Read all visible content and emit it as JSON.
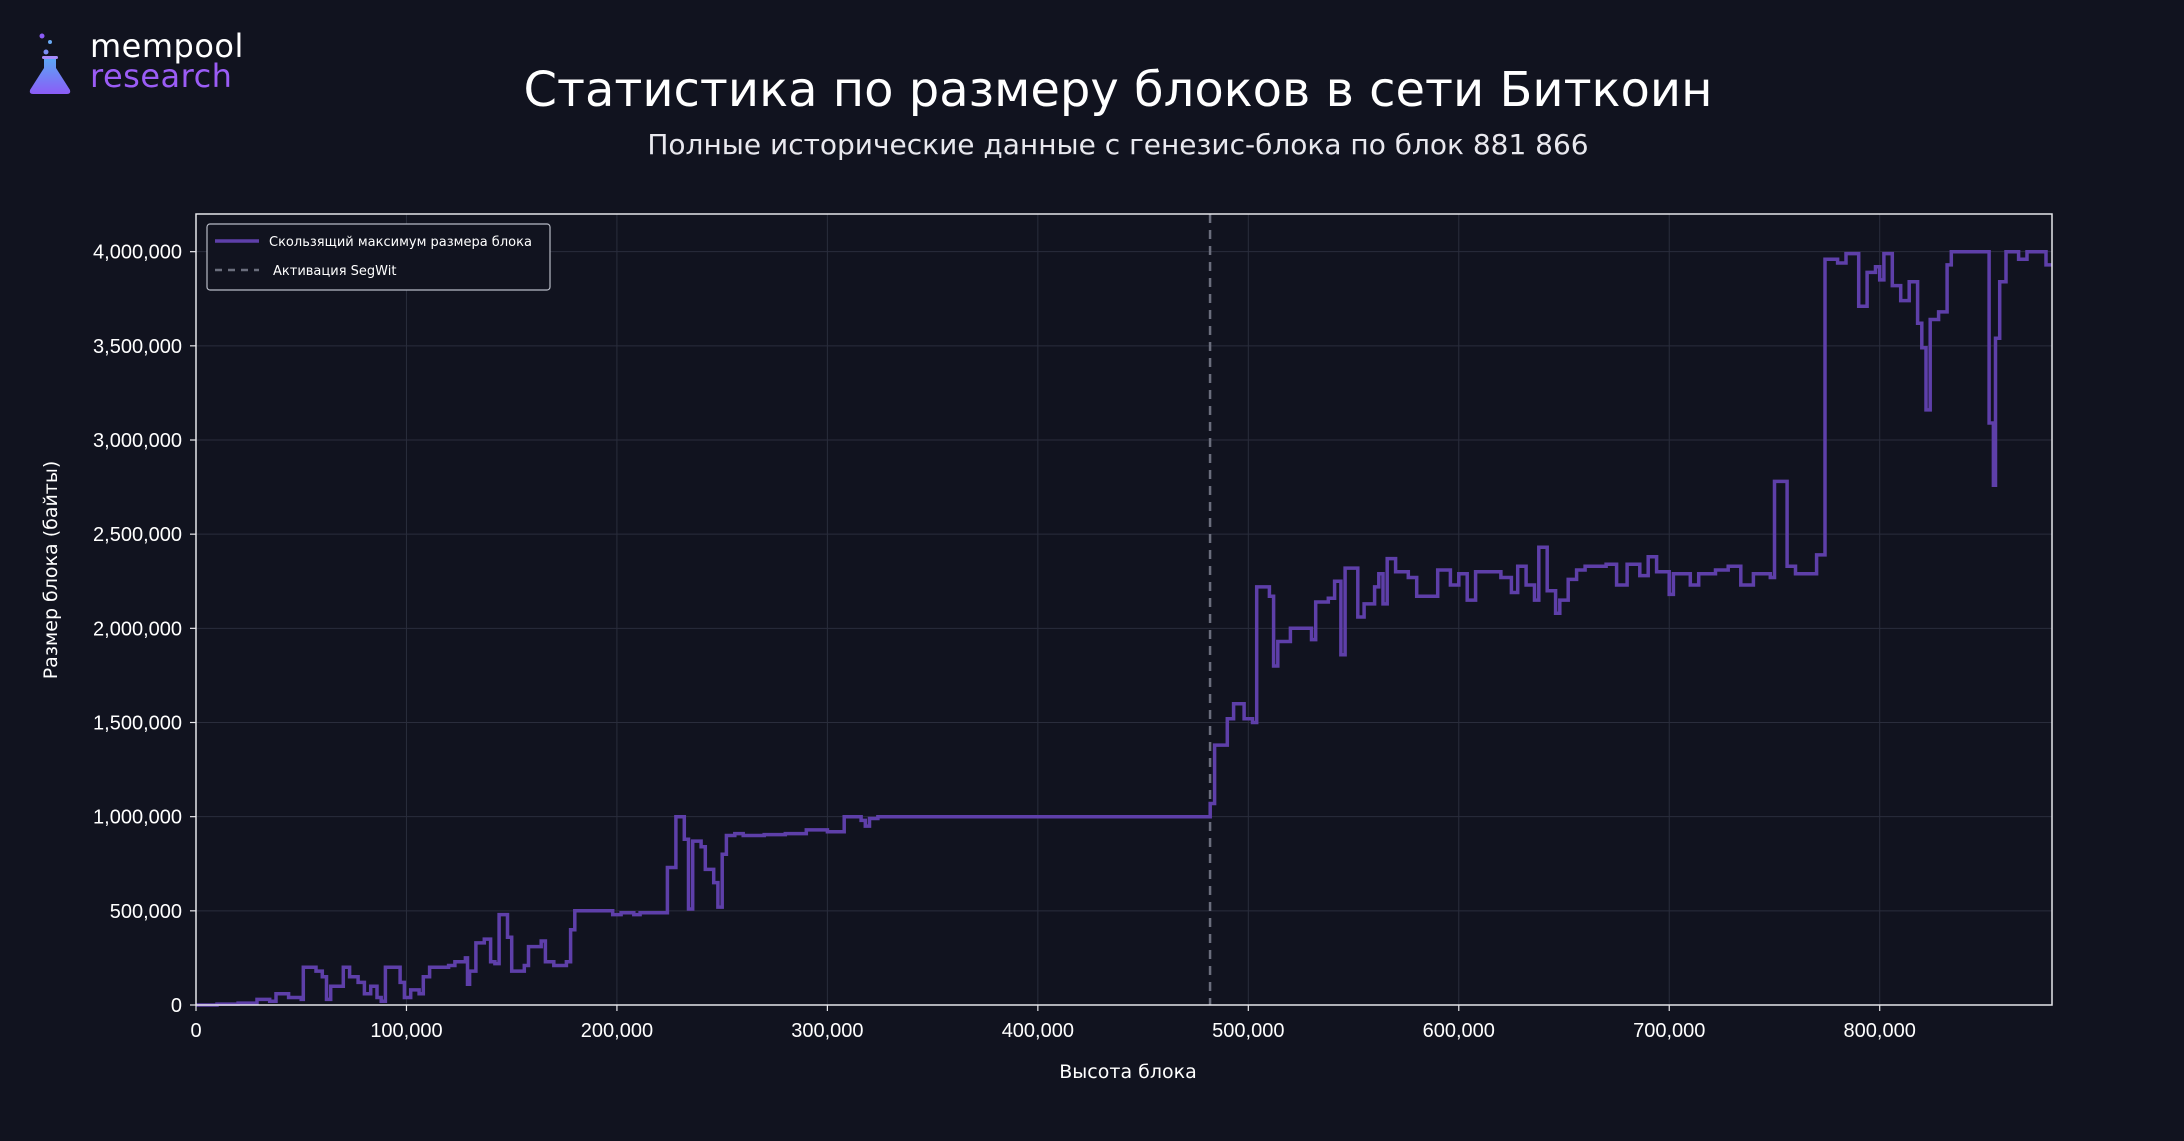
{
  "brand": {
    "line1": "mempool",
    "line2": "research",
    "icon": "flask-icon"
  },
  "colors": {
    "background": "#11131f",
    "line": "#5e3fa9",
    "segwit": "#6b6e7d",
    "grid": "#2a2d3c",
    "brand_accent": "#9b5cf6"
  },
  "chart_data": {
    "type": "line",
    "title": "Статистика по размеру блоков в сети Биткоин",
    "subtitle": "Полные исторические данные с генезис-блока по блок 881 866",
    "xlabel": "Высота блока",
    "ylabel": "Размер блока (байты)",
    "xlim": [
      0,
      881866
    ],
    "ylim": [
      0,
      4200000
    ],
    "xticks": [
      0,
      100000,
      200000,
      300000,
      400000,
      500000,
      600000,
      700000,
      800000
    ],
    "xtick_labels": [
      "0",
      "100,000",
      "200,000",
      "300,000",
      "400,000",
      "500,000",
      "600,000",
      "700,000",
      "800,000"
    ],
    "yticks": [
      0,
      500000,
      1000000,
      1500000,
      2000000,
      2500000,
      3000000,
      3500000,
      4000000
    ],
    "ytick_labels": [
      "0",
      "500,000",
      "1,000,000",
      "1,500,000",
      "2,000,000",
      "2,500,000",
      "3,000,000",
      "3,500,000",
      "4,000,000"
    ],
    "grid": true,
    "legend_position": "top-left",
    "legend": [
      "Скользящий максимум размера блока",
      "Активация SegWit"
    ],
    "segwit_activation": 481824,
    "series": [
      {
        "name": "Скользящий максимум размера блока",
        "step": true,
        "points": [
          [
            0,
            0
          ],
          [
            10000,
            5000
          ],
          [
            20000,
            10000
          ],
          [
            28000,
            10000
          ],
          [
            29000,
            30000
          ],
          [
            35000,
            20000
          ],
          [
            38000,
            60000
          ],
          [
            42000,
            60000
          ],
          [
            44000,
            40000
          ],
          [
            50000,
            30000
          ],
          [
            51000,
            200000
          ],
          [
            57000,
            180000
          ],
          [
            60000,
            150000
          ],
          [
            62000,
            30000
          ],
          [
            64000,
            100000
          ],
          [
            68000,
            100000
          ],
          [
            70000,
            200000
          ],
          [
            73000,
            150000
          ],
          [
            77000,
            120000
          ],
          [
            80000,
            60000
          ],
          [
            83000,
            100000
          ],
          [
            86000,
            40000
          ],
          [
            88000,
            20000
          ],
          [
            90000,
            200000
          ],
          [
            97000,
            120000
          ],
          [
            99000,
            40000
          ],
          [
            102000,
            80000
          ],
          [
            106000,
            60000
          ],
          [
            108000,
            150000
          ],
          [
            111000,
            200000
          ],
          [
            120000,
            210000
          ],
          [
            123000,
            230000
          ],
          [
            128000,
            250000
          ],
          [
            129000,
            110000
          ],
          [
            130000,
            180000
          ],
          [
            133000,
            330000
          ],
          [
            137000,
            350000
          ],
          [
            140000,
            230000
          ],
          [
            142000,
            220000
          ],
          [
            144000,
            480000
          ],
          [
            148000,
            360000
          ],
          [
            150000,
            180000
          ],
          [
            156000,
            210000
          ],
          [
            158000,
            310000
          ],
          [
            164000,
            340000
          ],
          [
            166000,
            230000
          ],
          [
            170000,
            210000
          ],
          [
            176000,
            230000
          ],
          [
            178000,
            400000
          ],
          [
            180000,
            500000
          ],
          [
            198000,
            480000
          ],
          [
            202000,
            490000
          ],
          [
            208000,
            480000
          ],
          [
            211000,
            490000
          ],
          [
            224000,
            730000
          ],
          [
            228000,
            1000000
          ],
          [
            232000,
            880000
          ],
          [
            234000,
            510000
          ],
          [
            236000,
            870000
          ],
          [
            240000,
            840000
          ],
          [
            242000,
            720000
          ],
          [
            246000,
            650000
          ],
          [
            248000,
            520000
          ],
          [
            250000,
            800000
          ],
          [
            252000,
            900000
          ],
          [
            256000,
            910000
          ],
          [
            260000,
            900000
          ],
          [
            270000,
            905000
          ],
          [
            280000,
            910000
          ],
          [
            290000,
            930000
          ],
          [
            300000,
            920000
          ],
          [
            308000,
            1000000
          ],
          [
            316000,
            980000
          ],
          [
            318000,
            950000
          ],
          [
            320000,
            990000
          ],
          [
            324000,
            1000000
          ],
          [
            480000,
            1000000
          ],
          [
            481900,
            1070000
          ],
          [
            484000,
            1380000
          ],
          [
            490000,
            1520000
          ],
          [
            493000,
            1600000
          ],
          [
            498000,
            1520000
          ],
          [
            502000,
            1500000
          ],
          [
            504000,
            2220000
          ],
          [
            510000,
            2170000
          ],
          [
            512000,
            1800000
          ],
          [
            514000,
            1930000
          ],
          [
            520000,
            2000000
          ],
          [
            526000,
            2000000
          ],
          [
            530000,
            1940000
          ],
          [
            532000,
            2140000
          ],
          [
            538000,
            2160000
          ],
          [
            541000,
            2250000
          ],
          [
            544000,
            1860000
          ],
          [
            546000,
            2320000
          ],
          [
            552000,
            2060000
          ],
          [
            555000,
            2130000
          ],
          [
            560000,
            2220000
          ],
          [
            562000,
            2290000
          ],
          [
            564000,
            2130000
          ],
          [
            566000,
            2370000
          ],
          [
            570000,
            2300000
          ],
          [
            576000,
            2270000
          ],
          [
            580000,
            2170000
          ],
          [
            590000,
            2310000
          ],
          [
            596000,
            2230000
          ],
          [
            600000,
            2290000
          ],
          [
            604000,
            2150000
          ],
          [
            608000,
            2300000
          ],
          [
            620000,
            2270000
          ],
          [
            625000,
            2190000
          ],
          [
            628000,
            2330000
          ],
          [
            632000,
            2230000
          ],
          [
            636000,
            2150000
          ],
          [
            638000,
            2430000
          ],
          [
            642000,
            2200000
          ],
          [
            646000,
            2080000
          ],
          [
            648000,
            2150000
          ],
          [
            652000,
            2260000
          ],
          [
            656000,
            2310000
          ],
          [
            660000,
            2330000
          ],
          [
            670000,
            2340000
          ],
          [
            675000,
            2230000
          ],
          [
            680000,
            2340000
          ],
          [
            686000,
            2280000
          ],
          [
            690000,
            2380000
          ],
          [
            694000,
            2300000
          ],
          [
            700000,
            2180000
          ],
          [
            702000,
            2290000
          ],
          [
            710000,
            2230000
          ],
          [
            714000,
            2290000
          ],
          [
            722000,
            2310000
          ],
          [
            728000,
            2330000
          ],
          [
            734000,
            2230000
          ],
          [
            740000,
            2290000
          ],
          [
            748000,
            2270000
          ],
          [
            750000,
            2780000
          ],
          [
            756000,
            2330000
          ],
          [
            760000,
            2290000
          ],
          [
            770000,
            2390000
          ],
          [
            774000,
            3960000
          ],
          [
            780000,
            3940000
          ],
          [
            784000,
            3990000
          ],
          [
            790000,
            3710000
          ],
          [
            794000,
            3890000
          ],
          [
            798000,
            3920000
          ],
          [
            800000,
            3850000
          ],
          [
            802000,
            3990000
          ],
          [
            806000,
            3820000
          ],
          [
            810000,
            3740000
          ],
          [
            814000,
            3840000
          ],
          [
            818000,
            3620000
          ],
          [
            820000,
            3490000
          ],
          [
            822000,
            3160000
          ],
          [
            824000,
            3640000
          ],
          [
            828000,
            3680000
          ],
          [
            832000,
            3930000
          ],
          [
            834000,
            4000000
          ],
          [
            852000,
            3090000
          ],
          [
            854000,
            2760000
          ],
          [
            855000,
            3540000
          ],
          [
            857000,
            3840000
          ],
          [
            860000,
            4000000
          ],
          [
            866000,
            3960000
          ],
          [
            870000,
            4000000
          ],
          [
            879000,
            3930000
          ],
          [
            881866,
            3930000
          ]
        ]
      }
    ]
  }
}
